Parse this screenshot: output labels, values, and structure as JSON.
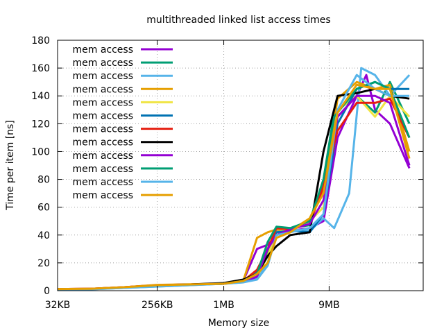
{
  "chart_data": {
    "type": "line",
    "title": "multithreaded linked list access times",
    "xlabel": "Memory size",
    "ylabel": "Time per item [ns]",
    "x_scale": "log2",
    "x_ticks": [
      {
        "value": 32,
        "label": "32KB"
      },
      {
        "value": 256,
        "label": "256KB"
      },
      {
        "value": 1024,
        "label": "1MB"
      },
      {
        "value": 9216,
        "label": "9MB"
      }
    ],
    "xlim": [
      32,
      65536
    ],
    "ylim": [
      0,
      180
    ],
    "y_ticks": [
      0,
      20,
      40,
      60,
      80,
      100,
      120,
      140,
      160,
      180
    ],
    "grid": true,
    "legend_position": "top-left",
    "series": [
      {
        "name": "mem access",
        "color": "#9400d3",
        "points": [
          [
            32,
            1.2
          ],
          [
            64,
            1.4
          ],
          [
            128,
            2.5
          ],
          [
            256,
            4
          ],
          [
            512,
            4.5
          ],
          [
            1024,
            5
          ],
          [
            1536,
            7
          ],
          [
            2048,
            30
          ],
          [
            2560,
            33
          ],
          [
            3072,
            40
          ],
          [
            4096,
            43
          ],
          [
            6144,
            45
          ],
          [
            8192,
            50
          ],
          [
            11000,
            110
          ],
          [
            16384,
            140
          ],
          [
            20000,
            155
          ],
          [
            24000,
            130
          ],
          [
            32768,
            120
          ],
          [
            49152,
            88
          ]
        ]
      },
      {
        "name": "mem access",
        "color": "#009e73",
        "points": [
          [
            32,
            1
          ],
          [
            64,
            1.2
          ],
          [
            128,
            2.3
          ],
          [
            256,
            3.8
          ],
          [
            512,
            4.4
          ],
          [
            1024,
            5
          ],
          [
            1536,
            7
          ],
          [
            2048,
            12
          ],
          [
            2560,
            28
          ],
          [
            3072,
            44
          ],
          [
            4096,
            45
          ],
          [
            6144,
            47
          ],
          [
            8192,
            80
          ],
          [
            10240,
            128
          ],
          [
            16384,
            140
          ],
          [
            24000,
            128
          ],
          [
            32768,
            150
          ],
          [
            49152,
            120
          ]
        ]
      },
      {
        "name": "mem access",
        "color": "#56b4e9",
        "points": [
          [
            32,
            0.8
          ],
          [
            64,
            1
          ],
          [
            128,
            2
          ],
          [
            256,
            3
          ],
          [
            512,
            4
          ],
          [
            1024,
            5
          ],
          [
            1536,
            6
          ],
          [
            2048,
            9
          ],
          [
            2560,
            20
          ],
          [
            3072,
            43
          ],
          [
            4096,
            44
          ],
          [
            6144,
            43
          ],
          [
            8192,
            52
          ],
          [
            10240,
            45
          ],
          [
            14000,
            70
          ],
          [
            18000,
            160
          ],
          [
            24000,
            155
          ],
          [
            32768,
            140
          ],
          [
            49152,
            155
          ]
        ]
      },
      {
        "name": "mem access",
        "color": "#e69f00",
        "points": [
          [
            32,
            1.2
          ],
          [
            64,
            1.4
          ],
          [
            128,
            2.5
          ],
          [
            256,
            4.2
          ],
          [
            512,
            4.6
          ],
          [
            1024,
            5.2
          ],
          [
            1536,
            7
          ],
          [
            2048,
            38
          ],
          [
            2560,
            42
          ],
          [
            3072,
            44
          ],
          [
            4096,
            43
          ],
          [
            6144,
            52
          ],
          [
            8192,
            72
          ],
          [
            11000,
            138
          ],
          [
            16384,
            150
          ],
          [
            24000,
            145
          ],
          [
            32768,
            148
          ],
          [
            49152,
            100
          ]
        ]
      },
      {
        "name": "mem access",
        "color": "#f0e442",
        "points": [
          [
            32,
            1
          ],
          [
            64,
            1.2
          ],
          [
            128,
            2.3
          ],
          [
            256,
            3.8
          ],
          [
            512,
            4.4
          ],
          [
            1024,
            5
          ],
          [
            1536,
            6.5
          ],
          [
            2048,
            10
          ],
          [
            2560,
            25
          ],
          [
            3072,
            42
          ],
          [
            4096,
            44
          ],
          [
            6144,
            50
          ],
          [
            8192,
            60
          ],
          [
            11000,
            130
          ],
          [
            16384,
            140
          ],
          [
            24000,
            125
          ],
          [
            32768,
            140
          ],
          [
            49152,
            125
          ]
        ]
      },
      {
        "name": "mem access",
        "color": "#0072b2",
        "points": [
          [
            32,
            1
          ],
          [
            64,
            1.2
          ],
          [
            128,
            2.3
          ],
          [
            256,
            3.8
          ],
          [
            512,
            4.4
          ],
          [
            1024,
            5
          ],
          [
            1536,
            7
          ],
          [
            2048,
            14
          ],
          [
            2560,
            30
          ],
          [
            3072,
            42
          ],
          [
            4096,
            43
          ],
          [
            6144,
            42
          ],
          [
            8192,
            55
          ],
          [
            11000,
            120
          ],
          [
            16384,
            145
          ],
          [
            24000,
            150
          ],
          [
            32768,
            145
          ],
          [
            49152,
            145
          ]
        ]
      },
      {
        "name": "mem access",
        "color": "#e51e10",
        "points": [
          [
            32,
            1.2
          ],
          [
            64,
            1.4
          ],
          [
            128,
            2.5
          ],
          [
            256,
            4
          ],
          [
            512,
            4.5
          ],
          [
            1024,
            5.2
          ],
          [
            1536,
            7
          ],
          [
            2048,
            15
          ],
          [
            2560,
            30
          ],
          [
            3072,
            45
          ],
          [
            4096,
            44
          ],
          [
            6144,
            48
          ],
          [
            8192,
            75
          ],
          [
            11000,
            115
          ],
          [
            16384,
            135
          ],
          [
            24000,
            135
          ],
          [
            32768,
            138
          ],
          [
            49152,
            110
          ]
        ]
      },
      {
        "name": "mem access",
        "color": "#000000",
        "points": [
          [
            32,
            1
          ],
          [
            64,
            1.2
          ],
          [
            128,
            2.3
          ],
          [
            256,
            3.9
          ],
          [
            512,
            4.5
          ],
          [
            1024,
            5.5
          ],
          [
            1536,
            8
          ],
          [
            2048,
            12
          ],
          [
            2560,
            25
          ],
          [
            3072,
            32
          ],
          [
            4096,
            40
          ],
          [
            6144,
            42
          ],
          [
            8192,
            100
          ],
          [
            11000,
            140
          ],
          [
            16384,
            142
          ],
          [
            24000,
            145
          ],
          [
            32768,
            140
          ],
          [
            49152,
            138
          ]
        ]
      },
      {
        "name": "mem access",
        "color": "#9400d3",
        "points": [
          [
            32,
            1
          ],
          [
            64,
            1.2
          ],
          [
            128,
            2.3
          ],
          [
            256,
            3.8
          ],
          [
            512,
            4.4
          ],
          [
            1024,
            5
          ],
          [
            1536,
            6.5
          ],
          [
            2048,
            10
          ],
          [
            2560,
            30
          ],
          [
            3072,
            40
          ],
          [
            4096,
            44
          ],
          [
            6144,
            48
          ],
          [
            8192,
            65
          ],
          [
            11000,
            125
          ],
          [
            16384,
            140
          ],
          [
            24000,
            140
          ],
          [
            32768,
            135
          ],
          [
            49152,
            90
          ]
        ]
      },
      {
        "name": "mem access",
        "color": "#009e73",
        "points": [
          [
            32,
            1
          ],
          [
            64,
            1.2
          ],
          [
            128,
            2.3
          ],
          [
            256,
            3.8
          ],
          [
            512,
            4.4
          ],
          [
            1024,
            5
          ],
          [
            1536,
            7
          ],
          [
            2048,
            12
          ],
          [
            2560,
            35
          ],
          [
            3072,
            46
          ],
          [
            4096,
            45
          ],
          [
            6144,
            50
          ],
          [
            8192,
            80
          ],
          [
            10240,
            125
          ],
          [
            16384,
            145
          ],
          [
            24000,
            150
          ],
          [
            32768,
            145
          ],
          [
            49152,
            110
          ]
        ]
      },
      {
        "name": "mem access",
        "color": "#56b4e9",
        "points": [
          [
            32,
            0.8
          ],
          [
            64,
            1
          ],
          [
            128,
            2
          ],
          [
            256,
            3
          ],
          [
            512,
            4
          ],
          [
            1024,
            5
          ],
          [
            1536,
            6
          ],
          [
            2048,
            8
          ],
          [
            2560,
            18
          ],
          [
            3072,
            40
          ],
          [
            4096,
            42
          ],
          [
            6144,
            45
          ],
          [
            8192,
            55
          ],
          [
            11000,
            130
          ],
          [
            16384,
            155
          ],
          [
            24000,
            145
          ],
          [
            32768,
            140
          ],
          [
            49152,
            140
          ]
        ]
      },
      {
        "name": "mem access",
        "color": "#e69f00",
        "points": [
          [
            32,
            1.2
          ],
          [
            64,
            1.4
          ],
          [
            128,
            2.5
          ],
          [
            256,
            4
          ],
          [
            512,
            4.5
          ],
          [
            1024,
            5
          ],
          [
            1536,
            7
          ],
          [
            2048,
            12
          ],
          [
            2560,
            20
          ],
          [
            3072,
            38
          ],
          [
            4096,
            42
          ],
          [
            6144,
            52
          ],
          [
            8192,
            70
          ],
          [
            11000,
            128
          ],
          [
            16384,
            148
          ],
          [
            24000,
            145
          ],
          [
            32768,
            145
          ],
          [
            49152,
            95
          ]
        ]
      }
    ]
  }
}
